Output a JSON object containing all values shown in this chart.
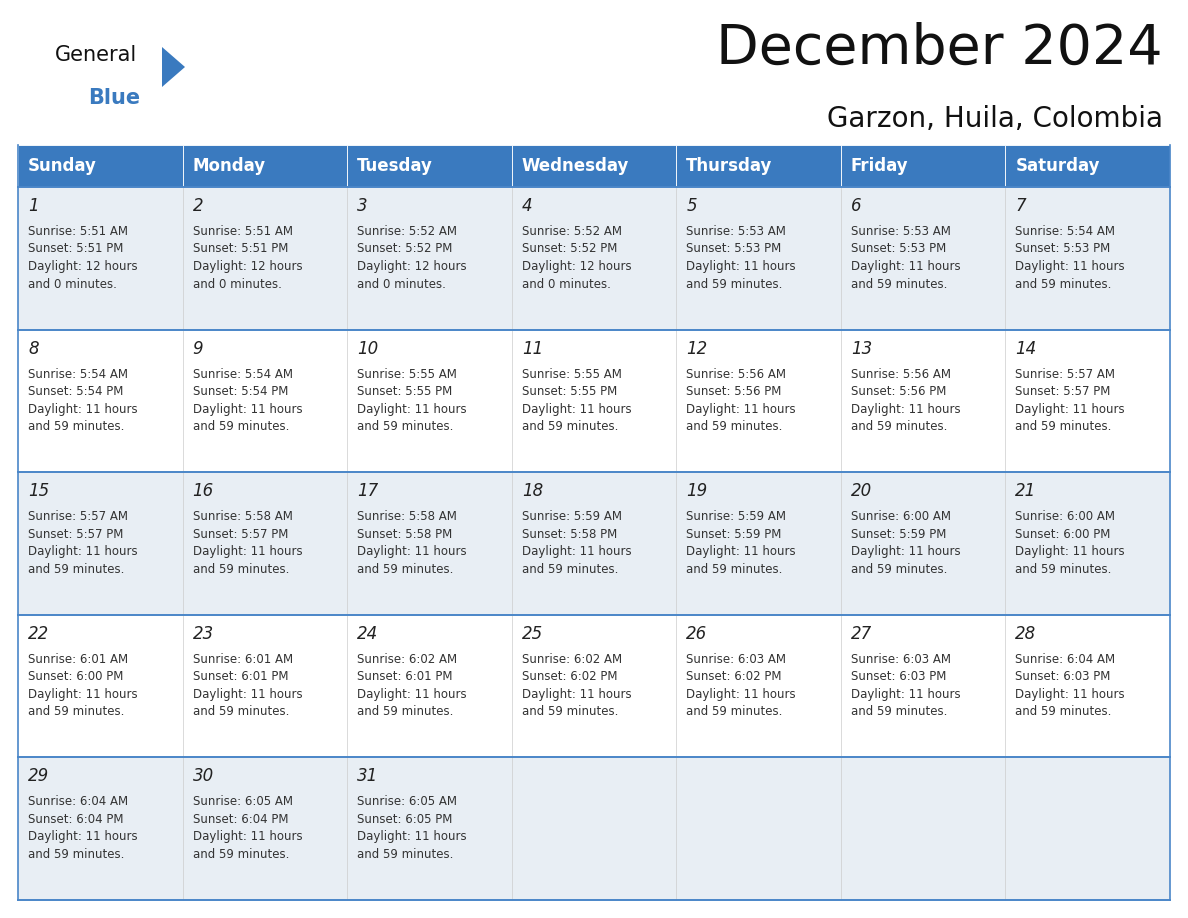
{
  "title": "December 2024",
  "subtitle": "Garzon, Huila, Colombia",
  "days_of_week": [
    "Sunday",
    "Monday",
    "Tuesday",
    "Wednesday",
    "Thursday",
    "Friday",
    "Saturday"
  ],
  "header_bg": "#3a7abf",
  "header_text": "#ffffff",
  "cell_bg_light": "#e8eef4",
  "cell_bg_white": "#ffffff",
  "row_line_color": "#4a86c8",
  "text_color": "#333333",
  "calendar_data": [
    [
      {
        "day": 1,
        "sunrise": "5:51 AM",
        "sunset": "5:51 PM",
        "daylight_line1": "Daylight: 12 hours",
        "daylight_line2": "and 0 minutes."
      },
      {
        "day": 2,
        "sunrise": "5:51 AM",
        "sunset": "5:51 PM",
        "daylight_line1": "Daylight: 12 hours",
        "daylight_line2": "and 0 minutes."
      },
      {
        "day": 3,
        "sunrise": "5:52 AM",
        "sunset": "5:52 PM",
        "daylight_line1": "Daylight: 12 hours",
        "daylight_line2": "and 0 minutes."
      },
      {
        "day": 4,
        "sunrise": "5:52 AM",
        "sunset": "5:52 PM",
        "daylight_line1": "Daylight: 12 hours",
        "daylight_line2": "and 0 minutes."
      },
      {
        "day": 5,
        "sunrise": "5:53 AM",
        "sunset": "5:53 PM",
        "daylight_line1": "Daylight: 11 hours",
        "daylight_line2": "and 59 minutes."
      },
      {
        "day": 6,
        "sunrise": "5:53 AM",
        "sunset": "5:53 PM",
        "daylight_line1": "Daylight: 11 hours",
        "daylight_line2": "and 59 minutes."
      },
      {
        "day": 7,
        "sunrise": "5:54 AM",
        "sunset": "5:53 PM",
        "daylight_line1": "Daylight: 11 hours",
        "daylight_line2": "and 59 minutes."
      }
    ],
    [
      {
        "day": 8,
        "sunrise": "5:54 AM",
        "sunset": "5:54 PM",
        "daylight_line1": "Daylight: 11 hours",
        "daylight_line2": "and 59 minutes."
      },
      {
        "day": 9,
        "sunrise": "5:54 AM",
        "sunset": "5:54 PM",
        "daylight_line1": "Daylight: 11 hours",
        "daylight_line2": "and 59 minutes."
      },
      {
        "day": 10,
        "sunrise": "5:55 AM",
        "sunset": "5:55 PM",
        "daylight_line1": "Daylight: 11 hours",
        "daylight_line2": "and 59 minutes."
      },
      {
        "day": 11,
        "sunrise": "5:55 AM",
        "sunset": "5:55 PM",
        "daylight_line1": "Daylight: 11 hours",
        "daylight_line2": "and 59 minutes."
      },
      {
        "day": 12,
        "sunrise": "5:56 AM",
        "sunset": "5:56 PM",
        "daylight_line1": "Daylight: 11 hours",
        "daylight_line2": "and 59 minutes."
      },
      {
        "day": 13,
        "sunrise": "5:56 AM",
        "sunset": "5:56 PM",
        "daylight_line1": "Daylight: 11 hours",
        "daylight_line2": "and 59 minutes."
      },
      {
        "day": 14,
        "sunrise": "5:57 AM",
        "sunset": "5:57 PM",
        "daylight_line1": "Daylight: 11 hours",
        "daylight_line2": "and 59 minutes."
      }
    ],
    [
      {
        "day": 15,
        "sunrise": "5:57 AM",
        "sunset": "5:57 PM",
        "daylight_line1": "Daylight: 11 hours",
        "daylight_line2": "and 59 minutes."
      },
      {
        "day": 16,
        "sunrise": "5:58 AM",
        "sunset": "5:57 PM",
        "daylight_line1": "Daylight: 11 hours",
        "daylight_line2": "and 59 minutes."
      },
      {
        "day": 17,
        "sunrise": "5:58 AM",
        "sunset": "5:58 PM",
        "daylight_line1": "Daylight: 11 hours",
        "daylight_line2": "and 59 minutes."
      },
      {
        "day": 18,
        "sunrise": "5:59 AM",
        "sunset": "5:58 PM",
        "daylight_line1": "Daylight: 11 hours",
        "daylight_line2": "and 59 minutes."
      },
      {
        "day": 19,
        "sunrise": "5:59 AM",
        "sunset": "5:59 PM",
        "daylight_line1": "Daylight: 11 hours",
        "daylight_line2": "and 59 minutes."
      },
      {
        "day": 20,
        "sunrise": "6:00 AM",
        "sunset": "5:59 PM",
        "daylight_line1": "Daylight: 11 hours",
        "daylight_line2": "and 59 minutes."
      },
      {
        "day": 21,
        "sunrise": "6:00 AM",
        "sunset": "6:00 PM",
        "daylight_line1": "Daylight: 11 hours",
        "daylight_line2": "and 59 minutes."
      }
    ],
    [
      {
        "day": 22,
        "sunrise": "6:01 AM",
        "sunset": "6:00 PM",
        "daylight_line1": "Daylight: 11 hours",
        "daylight_line2": "and 59 minutes."
      },
      {
        "day": 23,
        "sunrise": "6:01 AM",
        "sunset": "6:01 PM",
        "daylight_line1": "Daylight: 11 hours",
        "daylight_line2": "and 59 minutes."
      },
      {
        "day": 24,
        "sunrise": "6:02 AM",
        "sunset": "6:01 PM",
        "daylight_line1": "Daylight: 11 hours",
        "daylight_line2": "and 59 minutes."
      },
      {
        "day": 25,
        "sunrise": "6:02 AM",
        "sunset": "6:02 PM",
        "daylight_line1": "Daylight: 11 hours",
        "daylight_line2": "and 59 minutes."
      },
      {
        "day": 26,
        "sunrise": "6:03 AM",
        "sunset": "6:02 PM",
        "daylight_line1": "Daylight: 11 hours",
        "daylight_line2": "and 59 minutes."
      },
      {
        "day": 27,
        "sunrise": "6:03 AM",
        "sunset": "6:03 PM",
        "daylight_line1": "Daylight: 11 hours",
        "daylight_line2": "and 59 minutes."
      },
      {
        "day": 28,
        "sunrise": "6:04 AM",
        "sunset": "6:03 PM",
        "daylight_line1": "Daylight: 11 hours",
        "daylight_line2": "and 59 minutes."
      }
    ],
    [
      {
        "day": 29,
        "sunrise": "6:04 AM",
        "sunset": "6:04 PM",
        "daylight_line1": "Daylight: 11 hours",
        "daylight_line2": "and 59 minutes."
      },
      {
        "day": 30,
        "sunrise": "6:05 AM",
        "sunset": "6:04 PM",
        "daylight_line1": "Daylight: 11 hours",
        "daylight_line2": "and 59 minutes."
      },
      {
        "day": 31,
        "sunrise": "6:05 AM",
        "sunset": "6:05 PM",
        "daylight_line1": "Daylight: 11 hours",
        "daylight_line2": "and 59 minutes."
      },
      null,
      null,
      null,
      null
    ]
  ],
  "logo_text1": "General",
  "logo_text2": "Blue",
  "logo_triangle_color": "#3a7abf",
  "title_fontsize": 40,
  "subtitle_fontsize": 20,
  "header_fontsize": 12,
  "day_num_fontsize": 12,
  "cell_text_fontsize": 8.5
}
